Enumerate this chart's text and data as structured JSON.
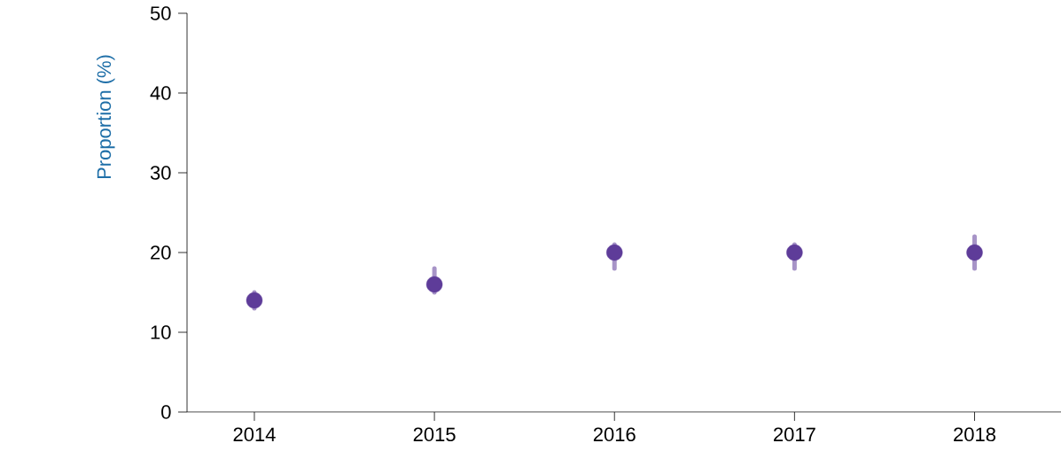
{
  "chart_data": {
    "type": "scatter",
    "ylabel": "Proportion (%)",
    "categories": [
      "2014",
      "2015",
      "2016",
      "2017",
      "2018"
    ],
    "series": [
      {
        "color": "#5e3c99",
        "values": [
          14,
          16,
          20,
          20,
          20
        ],
        "errors": [
          [
            13,
            15
          ],
          [
            15,
            18
          ],
          [
            18,
            21
          ],
          [
            18,
            21
          ],
          [
            18,
            22
          ]
        ]
      }
    ],
    "ylim": [
      0,
      50
    ],
    "yticks": [
      0,
      10,
      20,
      30,
      40,
      50
    ],
    "marker": "circle"
  }
}
